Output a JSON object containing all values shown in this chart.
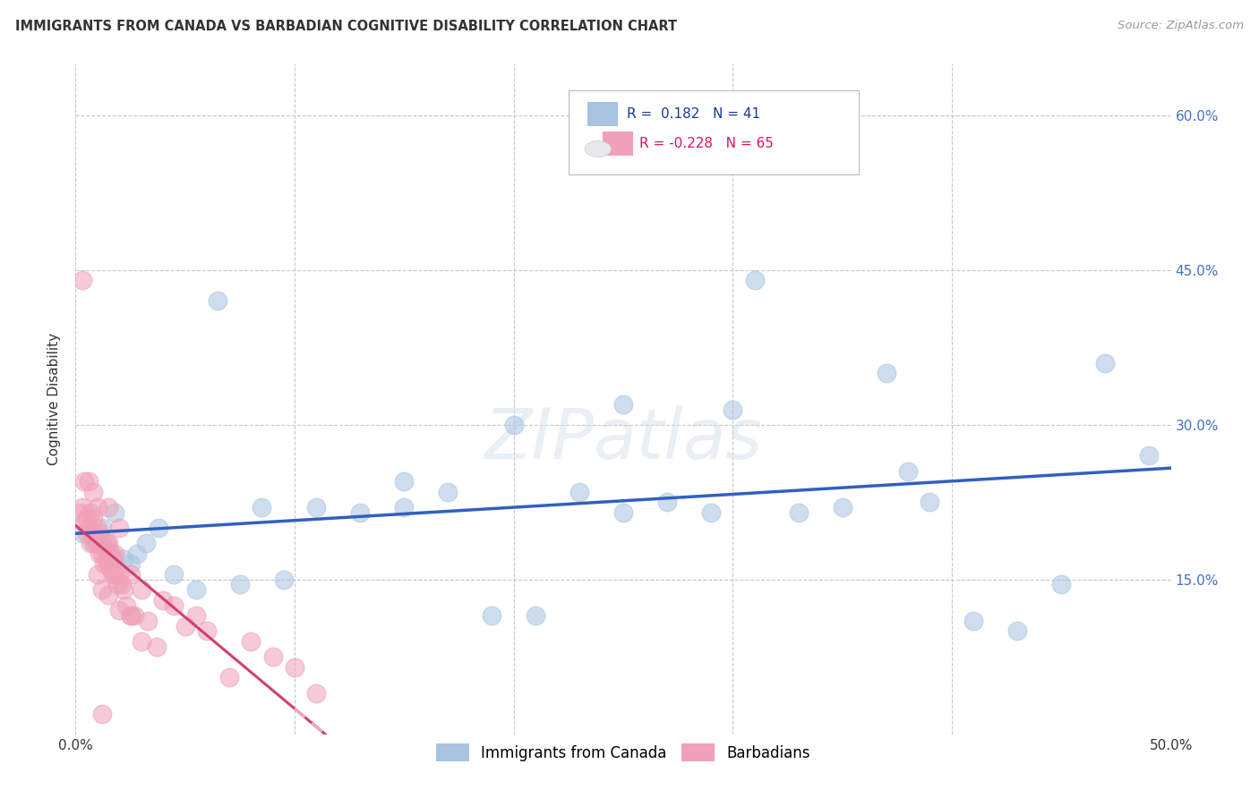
{
  "title": "IMMIGRANTS FROM CANADA VS BARBADIAN COGNITIVE DISABILITY CORRELATION CHART",
  "source": "Source: ZipAtlas.com",
  "ylabel": "Cognitive Disability",
  "xlim": [
    0.0,
    0.5
  ],
  "ylim": [
    0.0,
    0.65
  ],
  "xticks": [
    0.0,
    0.1,
    0.2,
    0.3,
    0.4,
    0.5
  ],
  "xticklabels": [
    "0.0%",
    "",
    "",
    "",
    "",
    "50.0%"
  ],
  "yticks": [
    0.0,
    0.15,
    0.3,
    0.45,
    0.6
  ],
  "yticklabels_right": [
    "",
    "15.0%",
    "30.0%",
    "45.0%",
    "60.0%"
  ],
  "grid_color": "#c8c8c8",
  "background_color": "#ffffff",
  "canada_color": "#a8c4e0",
  "barbadian_color": "#f0a0b8",
  "canada_line_color": "#3060c0",
  "barbadian_line_solid_color": "#d04070",
  "barbadian_line_dash_color": "#f0b0c8",
  "canada_R": 0.182,
  "canada_N": 41,
  "barbadian_R": -0.228,
  "barbadian_N": 65,
  "legend_label_canada": "Immigrants from Canada",
  "legend_label_barbadian": "Barbadians",
  "canada_x": [
    0.003,
    0.008,
    0.012,
    0.015,
    0.018,
    0.022,
    0.025,
    0.028,
    0.032,
    0.038,
    0.045,
    0.055,
    0.065,
    0.075,
    0.085,
    0.095,
    0.11,
    0.13,
    0.15,
    0.17,
    0.19,
    0.21,
    0.23,
    0.25,
    0.27,
    0.29,
    0.31,
    0.33,
    0.35,
    0.37,
    0.39,
    0.41,
    0.43,
    0.45,
    0.47,
    0.49,
    0.3,
    0.25,
    0.2,
    0.15,
    0.38
  ],
  "canada_y": [
    0.195,
    0.185,
    0.2,
    0.18,
    0.215,
    0.17,
    0.165,
    0.175,
    0.185,
    0.2,
    0.155,
    0.14,
    0.42,
    0.145,
    0.22,
    0.15,
    0.22,
    0.215,
    0.245,
    0.235,
    0.115,
    0.115,
    0.235,
    0.215,
    0.225,
    0.215,
    0.44,
    0.215,
    0.22,
    0.35,
    0.225,
    0.11,
    0.1,
    0.145,
    0.36,
    0.27,
    0.315,
    0.32,
    0.3,
    0.22,
    0.255
  ],
  "barbadian_x": [
    0.002,
    0.003,
    0.004,
    0.005,
    0.005,
    0.006,
    0.007,
    0.007,
    0.008,
    0.008,
    0.009,
    0.009,
    0.01,
    0.01,
    0.011,
    0.011,
    0.012,
    0.012,
    0.013,
    0.013,
    0.014,
    0.014,
    0.015,
    0.015,
    0.016,
    0.016,
    0.017,
    0.017,
    0.018,
    0.018,
    0.019,
    0.02,
    0.021,
    0.022,
    0.023,
    0.025,
    0.027,
    0.03,
    0.033,
    0.037,
    0.04,
    0.045,
    0.05,
    0.055,
    0.06,
    0.07,
    0.08,
    0.09,
    0.1,
    0.11,
    0.003,
    0.004,
    0.006,
    0.008,
    0.01,
    0.012,
    0.015,
    0.02,
    0.025,
    0.03,
    0.01,
    0.015,
    0.02,
    0.025,
    0.012
  ],
  "barbadian_y": [
    0.215,
    0.22,
    0.205,
    0.195,
    0.21,
    0.2,
    0.215,
    0.185,
    0.195,
    0.21,
    0.185,
    0.19,
    0.185,
    0.2,
    0.175,
    0.195,
    0.175,
    0.19,
    0.18,
    0.165,
    0.17,
    0.185,
    0.165,
    0.185,
    0.16,
    0.175,
    0.155,
    0.17,
    0.155,
    0.175,
    0.145,
    0.155,
    0.145,
    0.14,
    0.125,
    0.115,
    0.115,
    0.14,
    0.11,
    0.085,
    0.13,
    0.125,
    0.105,
    0.115,
    0.1,
    0.055,
    0.09,
    0.075,
    0.065,
    0.04,
    0.44,
    0.245,
    0.245,
    0.235,
    0.155,
    0.14,
    0.135,
    0.12,
    0.115,
    0.09,
    0.22,
    0.22,
    0.2,
    0.155,
    0.02
  ]
}
